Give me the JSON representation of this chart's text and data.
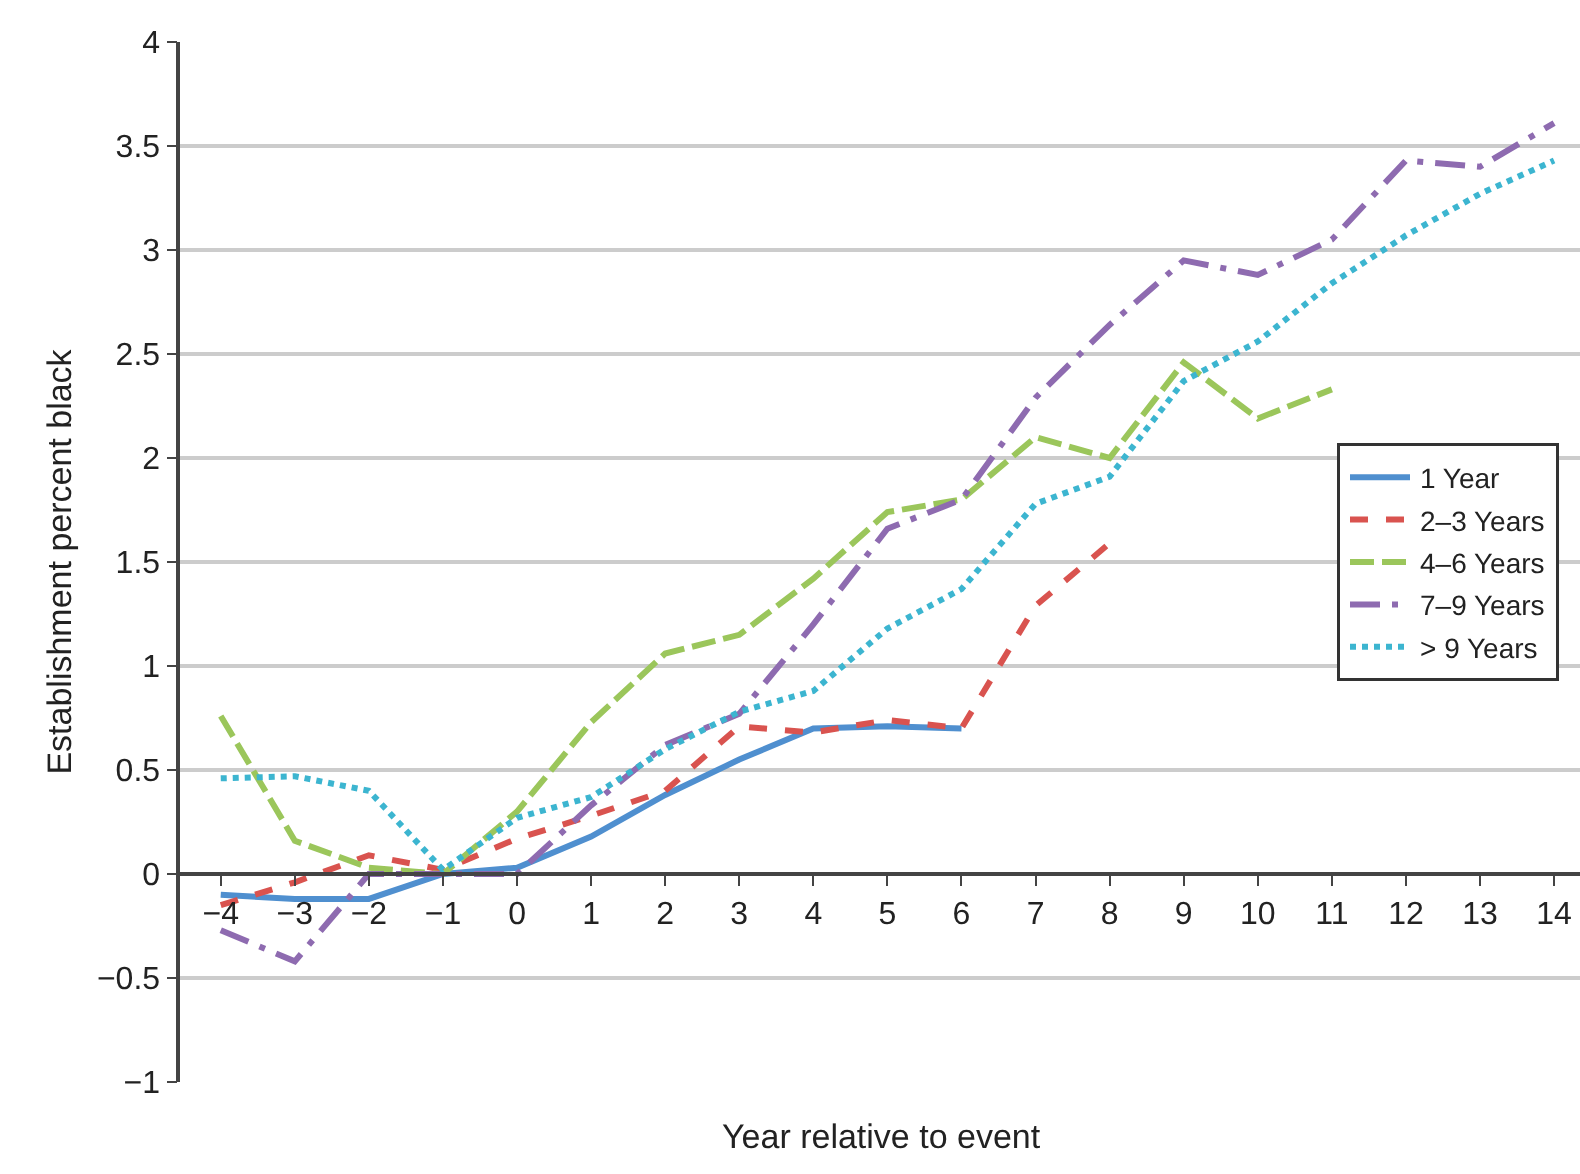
{
  "chart_data": {
    "type": "line",
    "xlabel": "Year relative to event",
    "ylabel": "Establishment percent black",
    "x": [
      -4,
      -3,
      -2,
      -1,
      0,
      1,
      2,
      3,
      4,
      5,
      6,
      7,
      8,
      9,
      10,
      11,
      12,
      13,
      14
    ],
    "series": [
      {
        "name": "1 Year",
        "color": "#4f8fcf",
        "line_style": "solid",
        "values": [
          -0.1,
          -0.12,
          -0.12,
          0,
          0.03,
          0.18,
          0.38,
          0.55,
          0.7,
          0.71,
          0.7,
          null,
          null,
          null,
          null,
          null,
          null,
          null,
          null
        ]
      },
      {
        "name": "2–3 Years",
        "color": "#d9534f",
        "line_style": "dashed",
        "values": [
          -0.15,
          -0.04,
          0.09,
          0.02,
          0.17,
          0.28,
          0.4,
          0.71,
          0.68,
          0.74,
          0.7,
          1.29,
          1.59,
          null,
          null,
          null,
          null,
          null,
          null
        ]
      },
      {
        "name": "4–6 Years",
        "color": "#9bc65b",
        "line_style": "longdash",
        "values": [
          0.76,
          0.16,
          0.03,
          0,
          0.3,
          0.73,
          1.06,
          1.15,
          1.42,
          1.74,
          1.8,
          2.1,
          2.0,
          2.46,
          2.19,
          2.33,
          null,
          null,
          null
        ]
      },
      {
        "name": "7–9 Years",
        "color": "#8e6bb0",
        "line_style": "longdashdot",
        "values": [
          -0.27,
          -0.42,
          0,
          0,
          0,
          0.33,
          0.62,
          0.77,
          1.2,
          1.66,
          1.8,
          2.29,
          2.64,
          2.95,
          2.88,
          3.05,
          3.43,
          3.4,
          3.61
        ]
      },
      {
        "name": "> 9 Years",
        "color": "#3cb5d0",
        "line_style": "dotted",
        "values": [
          0.46,
          0.47,
          0.4,
          0.02,
          0.27,
          0.37,
          0.6,
          0.78,
          0.88,
          1.18,
          1.37,
          1.78,
          1.91,
          2.37,
          2.56,
          2.84,
          3.07,
          3.27,
          3.43
        ]
      }
    ],
    "xlim": [
      -4.55,
      14.35
    ],
    "ylim": [
      -1,
      4
    ],
    "xticks": [
      {
        "value": -4,
        "label": "−4"
      },
      {
        "value": -3,
        "label": "−3"
      },
      {
        "value": -2,
        "label": "−2"
      },
      {
        "value": -1,
        "label": "−1"
      },
      0,
      1,
      2,
      3,
      4,
      5,
      6,
      7,
      8,
      9,
      10,
      11,
      12,
      13,
      14
    ],
    "yticks": [
      {
        "value": -1,
        "label": "−1"
      },
      {
        "value": -0.5,
        "label": "−0.5"
      },
      0,
      0.5,
      1,
      1.5,
      2,
      2.5,
      3,
      3.5,
      4
    ],
    "grid": "y",
    "legend": "right"
  }
}
